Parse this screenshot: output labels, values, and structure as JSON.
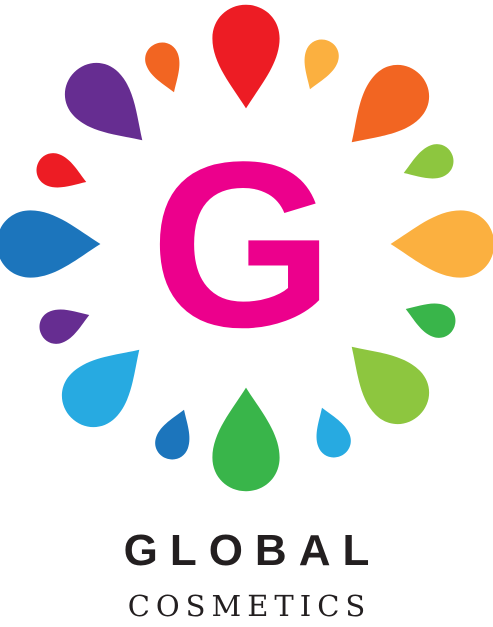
{
  "brand": {
    "monogram": "G",
    "name": "GLOBAL",
    "tagline": "COSMETICS"
  },
  "colors": {
    "monogram": "#ec008c",
    "text": "#231f20",
    "red": "#ed1c24",
    "orange": "#f26522",
    "yellow_orange": "#fbb040",
    "lime": "#8dc63f",
    "green": "#39b54a",
    "light_blue": "#27aae1",
    "blue": "#1c75bc",
    "purple": "#662d91"
  }
}
